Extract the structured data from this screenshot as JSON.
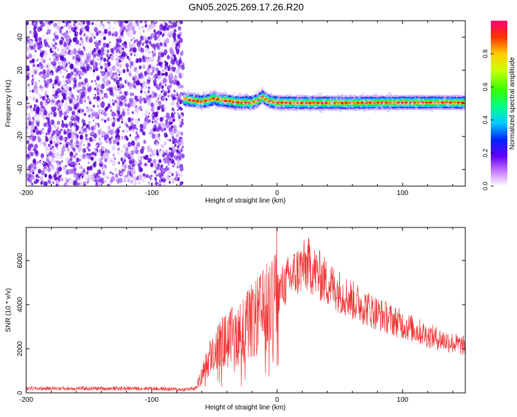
{
  "title": "GN05.2025.269.17.26.R20",
  "chart_data": [
    {
      "type": "heatmap",
      "xlabel": "Height of straight line (km)",
      "ylabel": "Frequency (Hz)",
      "xlim": [
        -200,
        150
      ],
      "ylim": [
        -50,
        50
      ],
      "x_ticks": [
        -200,
        -100,
        0,
        100
      ],
      "y_ticks": [
        -40,
        -20,
        0,
        20,
        40
      ],
      "noise_region_x": [
        -200,
        -75
      ],
      "signal_band": {
        "x_start": -75,
        "x_end": 150,
        "center_freq": [
          [
            -75,
            3
          ],
          [
            -70,
            2
          ],
          [
            -65,
            1.5
          ],
          [
            -60,
            1
          ],
          [
            -55,
            2
          ],
          [
            -50,
            3
          ],
          [
            -45,
            2
          ],
          [
            -40,
            1.5
          ],
          [
            -35,
            1
          ],
          [
            -30,
            0.5
          ],
          [
            -20,
            0.5
          ],
          [
            -15,
            2
          ],
          [
            -12,
            4
          ],
          [
            -8,
            2
          ],
          [
            -5,
            1
          ],
          [
            0,
            0.5
          ],
          [
            10,
            0.3
          ],
          [
            50,
            0.3
          ],
          [
            100,
            0.5
          ],
          [
            150,
            0.5
          ]
        ]
      },
      "colorbar": {
        "label": "Normalized spectral amplitude",
        "range": [
          0.0,
          1.0
        ],
        "ticks": [
          "0.0",
          "0.2",
          "0.4",
          "0.6",
          "0.8"
        ],
        "tick_values": [
          0.0,
          0.2,
          0.4,
          0.6,
          0.8
        ]
      }
    },
    {
      "type": "line",
      "xlabel": "Height of straight line (km)",
      "ylabel": "SNR (10 * v/v)",
      "xlim": [
        -200,
        150
      ],
      "ylim": [
        0,
        7500
      ],
      "x_ticks": [
        -200,
        -100,
        0,
        100
      ],
      "y_ticks": [
        0,
        2000,
        4000,
        6000
      ],
      "color": "#ee3333",
      "envelope": [
        [
          -200,
          200
        ],
        [
          -100,
          200
        ],
        [
          -75,
          150
        ],
        [
          -65,
          200
        ],
        [
          -60,
          800
        ],
        [
          -55,
          1500
        ],
        [
          -50,
          2000
        ],
        [
          -40,
          2400
        ],
        [
          -30,
          2700
        ],
        [
          -20,
          3200
        ],
        [
          -10,
          3700
        ],
        [
          0,
          4500
        ],
        [
          10,
          5200
        ],
        [
          20,
          5700
        ],
        [
          25,
          5800
        ],
        [
          30,
          5500
        ],
        [
          40,
          5000
        ],
        [
          60,
          4200
        ],
        [
          80,
          3600
        ],
        [
          100,
          3100
        ],
        [
          120,
          2600
        ],
        [
          150,
          2100
        ]
      ],
      "peak": [
        -2,
        7400
      ]
    }
  ],
  "colors": {
    "line": "#ee3333",
    "noise": "#7722dd",
    "axis": "#000000"
  }
}
